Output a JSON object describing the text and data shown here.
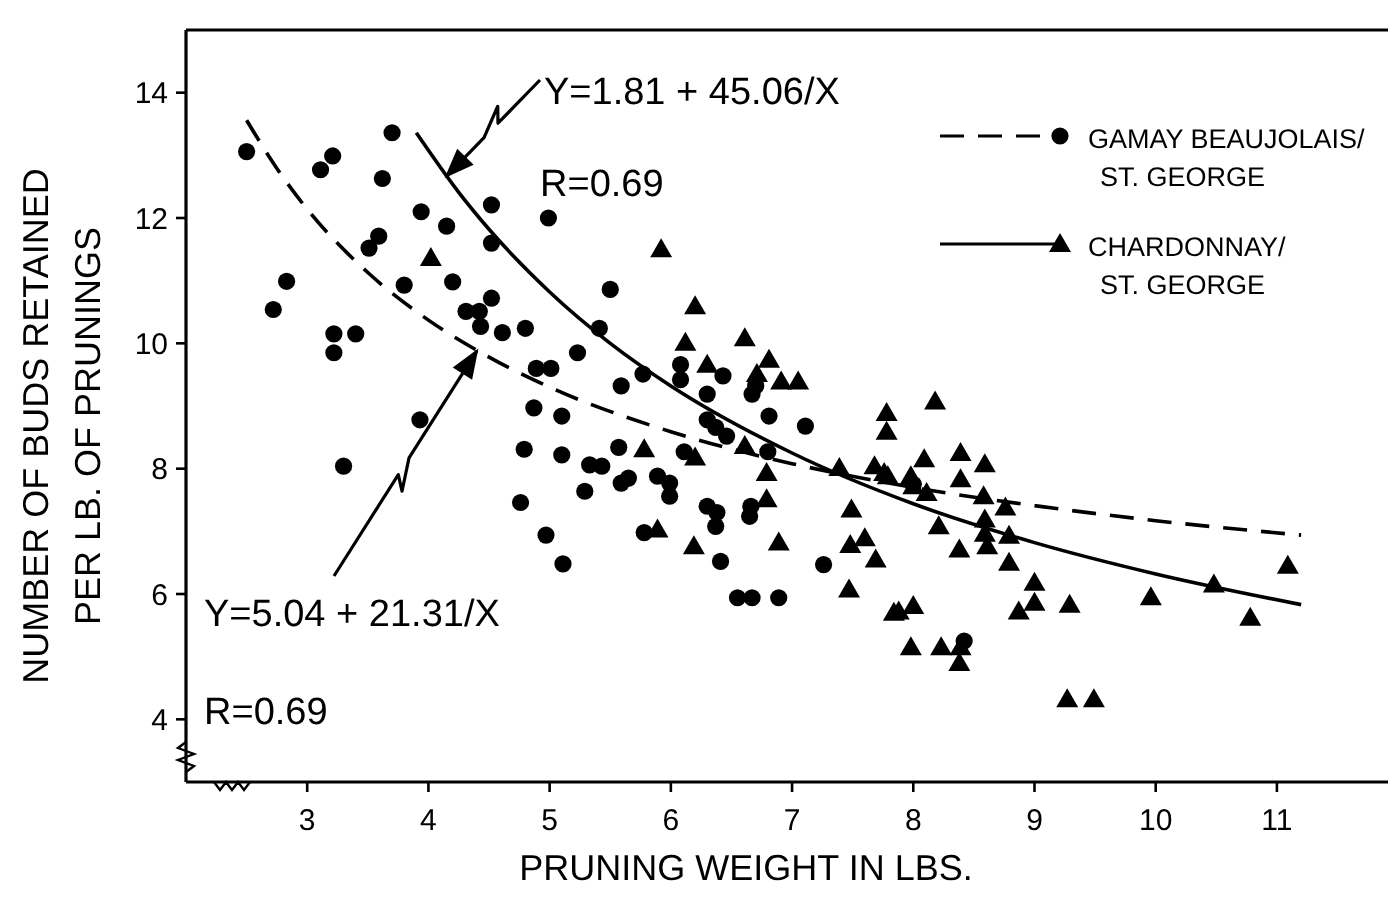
{
  "chart_data": {
    "type": "scatter",
    "xlabel": "PRUNING WEIGHT IN LBS.",
    "ylabel": "NUMBER OF BUDS RETAINED PER LB. OF PRUNINGS",
    "xlim": [
      2,
      11.9
    ],
    "ylim": [
      3,
      15
    ],
    "xticks": [
      3,
      4,
      5,
      6,
      7,
      8,
      9,
      10,
      11
    ],
    "yticks": [
      4,
      6,
      8,
      10,
      12,
      14
    ],
    "legend": "top right",
    "annotations": [
      {
        "text": "Y=1.81 + 45.06/X",
        "x": 4.15,
        "y": 12.67
      },
      "R=0.69",
      {
        "text": "Y=5.04 + 21.31/X",
        "x": 4.4,
        "y": 9.88
      },
      "R=0.69"
    ],
    "series": [
      {
        "name": "GAMAY BEAUJOLAIS/ ST. GEORGE",
        "color": "#000000",
        "marker": "circle",
        "line_style": "dashed",
        "x": [
          2.5,
          2.72,
          2.83,
          3.11,
          3.21,
          3.22,
          3.22,
          3.4,
          3.3,
          3.7,
          3.62,
          3.51,
          3.59,
          3.8,
          3.94,
          4.15,
          4.2,
          3.93,
          4.52,
          4.52,
          4.52,
          4.31,
          4.42,
          4.43,
          4.61,
          4.8,
          4.99,
          4.89,
          5.01,
          5.23,
          4.87,
          5.1,
          4.79,
          5.1,
          5.33,
          5.29,
          4.76,
          4.97,
          5.11,
          5.5,
          5.41,
          5.59,
          5.77,
          6.08,
          6.08,
          6.43,
          6.3,
          6.81,
          6.67,
          6.7,
          7.11,
          6.3,
          6.37,
          6.46,
          5.57,
          5.43,
          5.65,
          5.59,
          5.89,
          5.99,
          5.99,
          6.11,
          6.3,
          6.38,
          6.37,
          6.66,
          6.65,
          6.8,
          5.78,
          6.41,
          7.26,
          6.55,
          6.67,
          6.89,
          8.0,
          8.42
        ],
        "values": [
          13.06,
          10.54,
          10.99,
          12.77,
          12.99,
          10.15,
          9.85,
          10.15,
          8.04,
          13.36,
          12.63,
          11.52,
          11.71,
          10.93,
          12.1,
          11.87,
          10.98,
          8.78,
          12.21,
          11.6,
          10.72,
          10.51,
          10.51,
          10.27,
          10.17,
          10.24,
          12.0,
          9.6,
          9.6,
          9.85,
          8.97,
          8.84,
          8.31,
          8.22,
          8.06,
          7.64,
          7.46,
          6.94,
          6.48,
          10.86,
          10.24,
          9.32,
          9.51,
          9.66,
          9.42,
          9.48,
          9.19,
          8.84,
          9.19,
          9.32,
          8.68,
          8.78,
          8.66,
          8.52,
          8.34,
          8.04,
          7.85,
          7.77,
          7.88,
          7.77,
          7.56,
          8.27,
          7.4,
          7.3,
          7.08,
          7.4,
          7.24,
          8.27,
          6.98,
          6.52,
          6.47,
          5.94,
          5.94,
          5.94,
          7.75,
          5.25
        ]
      },
      {
        "name": "CHARDONNAY/ ST. GEORGE",
        "color": "#000000",
        "marker": "triangle",
        "line_style": "solid",
        "x": [
          4.02,
          5.92,
          6.2,
          6.12,
          6.61,
          6.81,
          6.3,
          6.71,
          6.91,
          7.05,
          5.78,
          6.2,
          6.61,
          6.79,
          6.79,
          5.89,
          6.19,
          6.89,
          7.39,
          7.68,
          7.76,
          7.78,
          7.78,
          7.49,
          7.48,
          7.6,
          7.69,
          7.47,
          7.84,
          8.18,
          7.79,
          7.98,
          8.09,
          8.0,
          8.11,
          8.39,
          8.59,
          8.39,
          8.58,
          8.76,
          8.59,
          8.59,
          8.61,
          8.79,
          8.21,
          8.38,
          8.79,
          9.0,
          9.0,
          8.87,
          9.29,
          9.96,
          10.48,
          10.78,
          11.09,
          7.88,
          8.0,
          7.98,
          8.23,
          8.39,
          8.38,
          9.27,
          9.49
        ],
        "values": [
          11.36,
          11.5,
          10.59,
          10.01,
          10.08,
          9.74,
          9.66,
          9.51,
          9.39,
          9.39,
          8.31,
          8.18,
          8.36,
          7.93,
          7.51,
          7.03,
          6.76,
          6.82,
          8.01,
          8.04,
          7.93,
          8.89,
          8.59,
          7.35,
          6.78,
          6.89,
          6.55,
          6.07,
          5.7,
          9.07,
          7.88,
          7.88,
          8.15,
          7.72,
          7.61,
          8.25,
          8.07,
          7.83,
          7.56,
          7.38,
          7.19,
          6.96,
          6.76,
          6.93,
          7.08,
          6.71,
          6.5,
          6.18,
          5.86,
          5.72,
          5.83,
          5.95,
          6.15,
          5.62,
          6.45,
          5.72,
          5.81,
          5.15,
          5.15,
          5.15,
          4.9,
          4.32,
          4.32
        ]
      },
      {
        "type": "line",
        "color": "#000000",
        "line_style": "dashed",
        "marker": "none",
        "x": [
          2.5,
          2.75,
          3,
          3.5,
          4,
          4.5,
          5,
          6,
          7,
          8,
          9,
          10,
          11.2
        ],
        "values": [
          13.56,
          12.79,
          12.14,
          11.13,
          10.37,
          9.78,
          9.3,
          8.59,
          8.08,
          7.7,
          7.41,
          7.17,
          6.94
        ]
      },
      {
        "type": "line",
        "color": "#000000",
        "line_style": "solid",
        "marker": "none",
        "x": [
          3.9,
          4.25,
          4.5,
          5,
          5.5,
          6,
          7,
          8,
          9,
          10,
          11.2
        ],
        "values": [
          13.36,
          12.41,
          11.82,
          10.82,
          10.0,
          9.32,
          8.25,
          7.44,
          6.82,
          6.32,
          5.83
        ]
      }
    ]
  }
}
